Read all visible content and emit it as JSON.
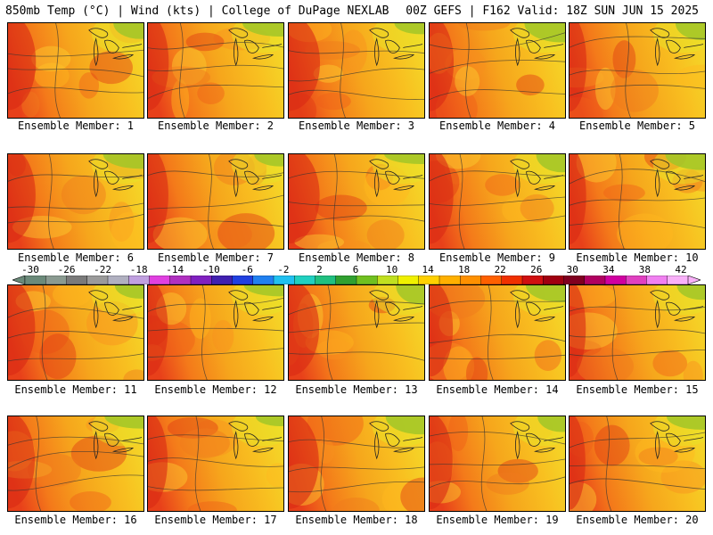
{
  "header": {
    "left": "850mb Temp (°C) | Wind (kts) | College of DuPage NEXLAB",
    "right": "00Z GEFS | F162 Valid: 18Z SUN JUN 15 2025"
  },
  "panels": [
    {
      "label": "Ensemble Member: 1"
    },
    {
      "label": "Ensemble Member: 2"
    },
    {
      "label": "Ensemble Member: 3"
    },
    {
      "label": "Ensemble Member: 4"
    },
    {
      "label": "Ensemble Member: 5"
    },
    {
      "label": "Ensemble Member: 6"
    },
    {
      "label": "Ensemble Member: 7"
    },
    {
      "label": "Ensemble Member: 8"
    },
    {
      "label": "Ensemble Member: 9"
    },
    {
      "label": "Ensemble Member: 10"
    },
    {
      "label": "Ensemble Member: 11"
    },
    {
      "label": "Ensemble Member: 12"
    },
    {
      "label": "Ensemble Member: 13"
    },
    {
      "label": "Ensemble Member: 14"
    },
    {
      "label": "Ensemble Member: 15"
    },
    {
      "label": "Ensemble Member: 16"
    },
    {
      "label": "Ensemble Member: 17"
    },
    {
      "label": "Ensemble Member: 18"
    },
    {
      "label": "Ensemble Member: 19"
    },
    {
      "label": "Ensemble Member: 20"
    }
  ],
  "colorbar": {
    "labels": [
      "-30",
      "-26",
      "-22",
      "-18",
      "-14",
      "-10",
      "-6",
      "-2",
      "2",
      "6",
      "10",
      "14",
      "18",
      "22",
      "26",
      "30",
      "34",
      "38",
      "42"
    ],
    "colors": [
      "#6b8a7a",
      "#8a9a90",
      "#7a7a7a",
      "#9a9a9a",
      "#b0b0c0",
      "#c0a0e0",
      "#e040e0",
      "#b030c0",
      "#8020c0",
      "#4020b0",
      "#2040e0",
      "#2080f0",
      "#20c0f0",
      "#20d0c0",
      "#20c080",
      "#30a030",
      "#70c020",
      "#c0e020",
      "#f0f000",
      "#ffd000",
      "#ffb000",
      "#ff9000",
      "#ff6000",
      "#f03000",
      "#d01010",
      "#a00010",
      "#800020",
      "#b00060",
      "#d000a0",
      "#e040c0",
      "#f080f0",
      "#f8b0f8"
    ]
  }
}
